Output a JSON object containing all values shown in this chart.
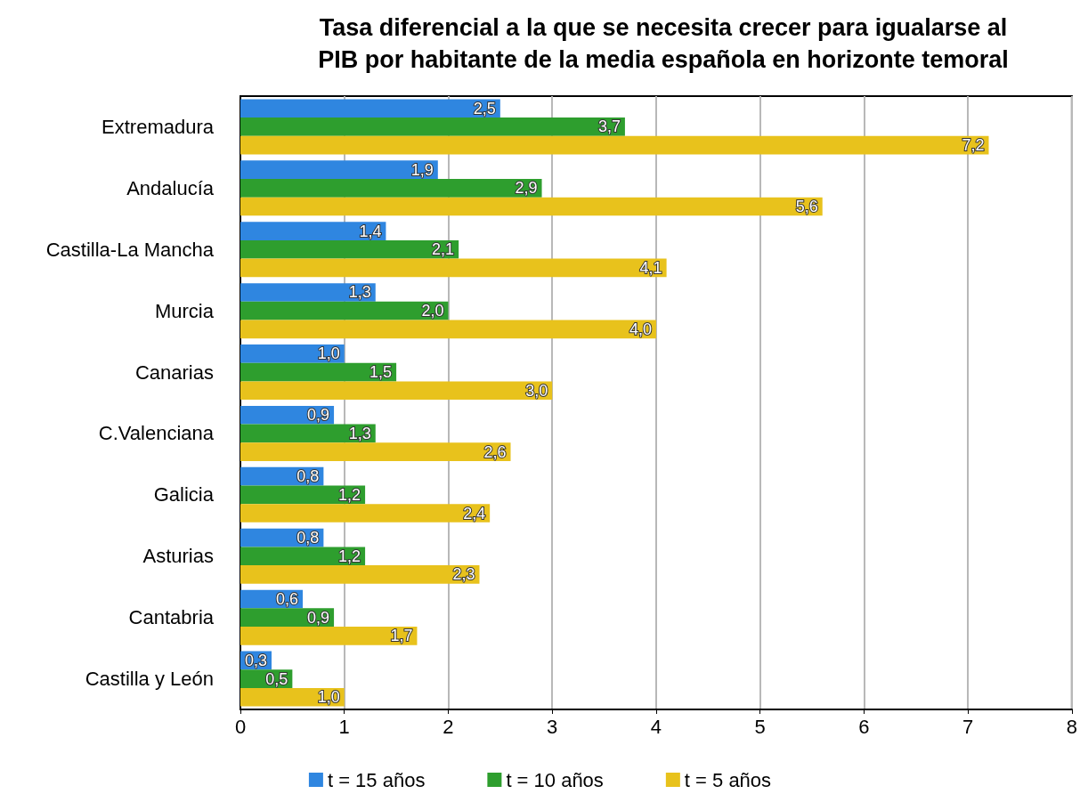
{
  "chart_data": {
    "type": "bar",
    "orientation": "horizontal",
    "title": "Tasa diferencial a la que se necesita crecer para igualarse al\nPIB por habitante de la media española en horizonte temoral",
    "categories": [
      "Extremadura",
      "Andalucía",
      "Castilla-La Mancha",
      "Murcia",
      "Canarias",
      "C.Valenciana",
      "Galicia",
      "Asturias",
      "Cantabria",
      "Castilla y León"
    ],
    "series": [
      {
        "name": "t = 15 años",
        "color": "#2f86e0",
        "values": [
          2.5,
          1.9,
          1.4,
          1.3,
          1.0,
          0.9,
          0.8,
          0.8,
          0.6,
          0.3
        ],
        "value_labels": [
          "2,5",
          "1,9",
          "1,4",
          "1,3",
          "1,0",
          "0,9",
          "0,8",
          "0,8",
          "0,6",
          "0,3"
        ]
      },
      {
        "name": "t = 10 años",
        "color": "#2e9e2e",
        "values": [
          3.7,
          2.9,
          2.1,
          2.0,
          1.5,
          1.3,
          1.2,
          1.2,
          0.9,
          0.5
        ],
        "value_labels": [
          "3,7",
          "2,9",
          "2,1",
          "2,0",
          "1,5",
          "1,3",
          "1,2",
          "1,2",
          "0,9",
          "0,5"
        ]
      },
      {
        "name": "t = 5 años",
        "color": "#e8c21c",
        "values": [
          7.2,
          5.6,
          4.1,
          4.0,
          3.0,
          2.6,
          2.4,
          2.3,
          1.7,
          1.0
        ],
        "value_labels": [
          "7,2",
          "5,6",
          "4,1",
          "4,0",
          "3,0",
          "2,6",
          "2,4",
          "2,3",
          "1,7",
          "1,0"
        ]
      }
    ],
    "xlim": [
      0,
      8
    ],
    "xticks": [
      0,
      1,
      2,
      3,
      4,
      5,
      6,
      7,
      8
    ],
    "grid": "x",
    "legend": "bottom"
  }
}
